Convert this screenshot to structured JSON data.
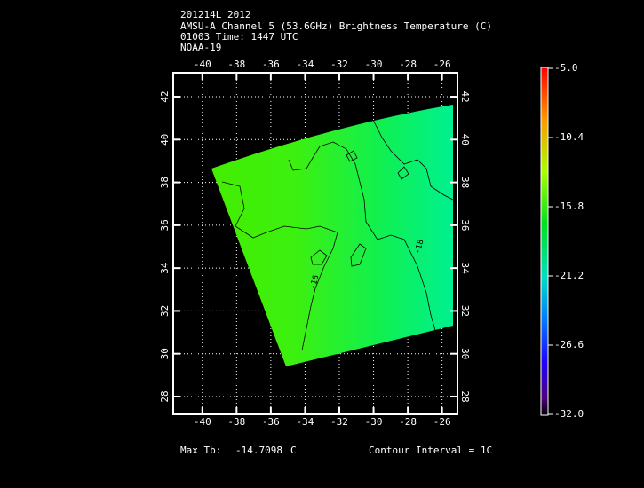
{
  "header": {
    "lines": [
      "201214L 2012",
      "AMSU-A Channel 5 (53.6GHz) Brightness Temperature (C)",
      "01003 Time: 1447 UTC",
      "NOAA-19"
    ]
  },
  "map": {
    "xlim": [
      -41.7,
      -25.1
    ],
    "ylim": [
      27.17,
      43.12
    ],
    "xticks": [
      -40,
      -38,
      -36,
      -34,
      -32,
      -30,
      -28,
      -26
    ],
    "yticks": [
      28,
      30,
      32,
      34,
      36,
      38,
      40,
      42
    ],
    "grid": true,
    "contour_labels": [
      "-16",
      "-18"
    ]
  },
  "colorbar": {
    "lim": [
      -32,
      -5
    ],
    "ticks": [
      {
        "value": -5,
        "label": "-5.0"
      },
      -10.4,
      -15.8,
      -21.2,
      -26.6,
      {
        "value": -32,
        "label": "-32.0"
      }
    ]
  },
  "footer": {
    "max_label": "Max Tb:",
    "max_value": -14.7098,
    "unit": "C",
    "contour_interval": "Contour Interval = 1C"
  }
}
